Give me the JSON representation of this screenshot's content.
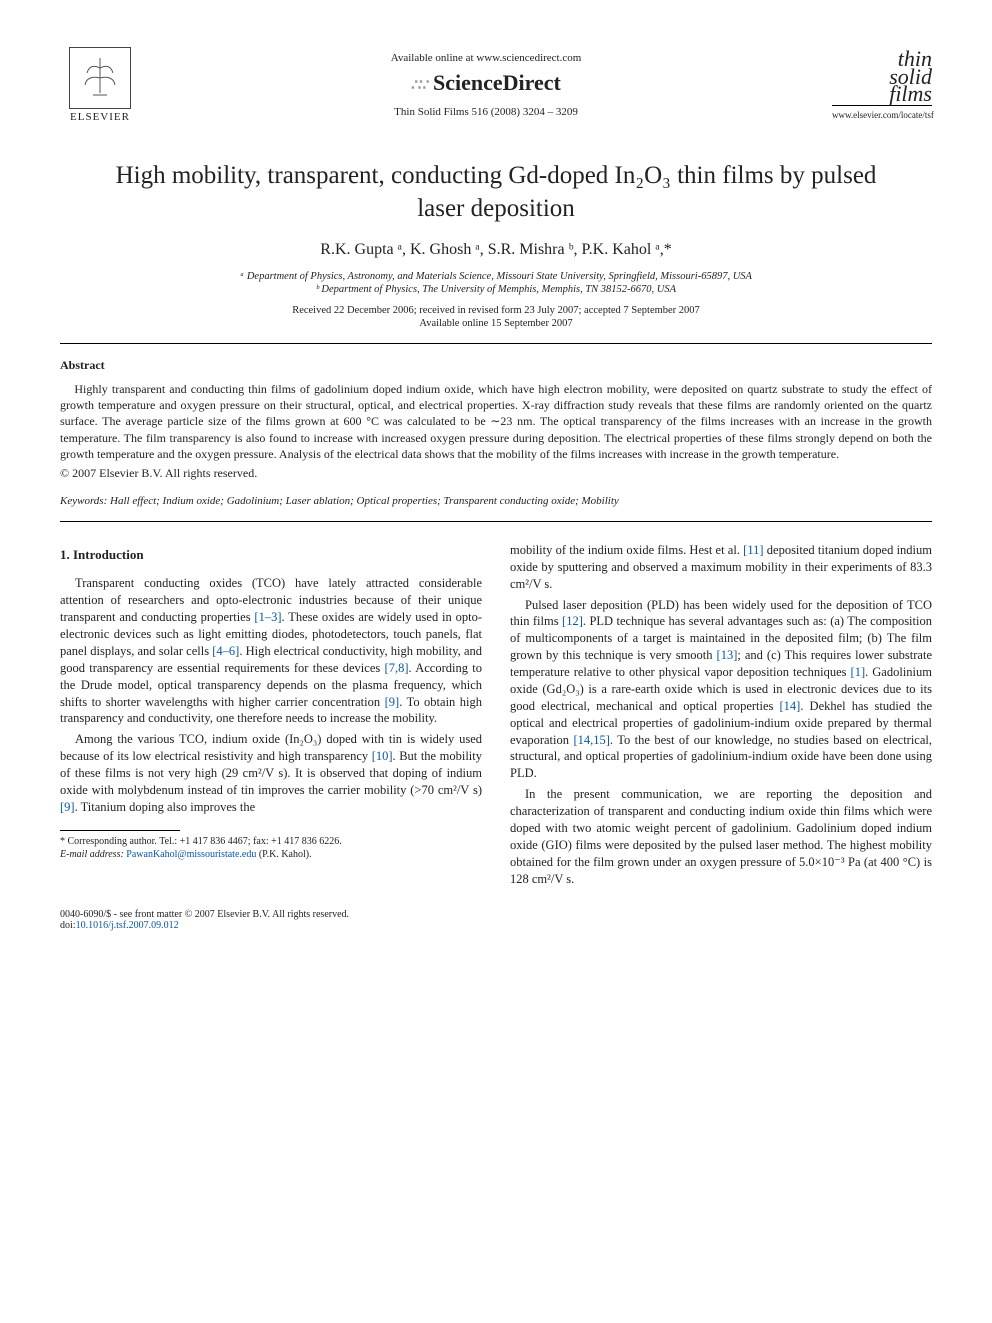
{
  "header": {
    "publisher": "ELSEVIER",
    "avail_text": "Available online at www.sciencedirect.com",
    "sd_brand": "ScienceDirect",
    "journal_ref": "Thin Solid Films 516 (2008) 3204 – 3209",
    "journal_logo_lines": [
      "thin",
      "solid",
      "films"
    ],
    "journal_url": "www.elsevier.com/locate/tsf"
  },
  "title": "High mobility, transparent, conducting Gd-doped In₂O₃ thin films by pulsed laser deposition",
  "authors_html": "R.K. Gupta ᵃ, K. Ghosh ᵃ, S.R. Mishra ᵇ, P.K. Kahol ᵃ,*",
  "affiliations": {
    "a": "ᵃ Department of Physics, Astronomy, and Materials Science, Missouri State University, Springfield, Missouri-65897, USA",
    "b": "ᵇ Department of Physics, The University of Memphis, Memphis, TN 38152-6670, USA"
  },
  "dates": {
    "received": "Received 22 December 2006; received in revised form 23 July 2007; accepted 7 September 2007",
    "online": "Available online 15 September 2007"
  },
  "abstract": {
    "heading": "Abstract",
    "body": "Highly transparent and conducting thin films of gadolinium doped indium oxide, which have high electron mobility, were deposited on quartz substrate to study the effect of growth temperature and oxygen pressure on their structural, optical, and electrical properties. X-ray diffraction study reveals that these films are randomly oriented on the quartz surface. The average particle size of the films grown at 600 °C was calculated to be ∼23 nm. The optical transparency of the films increases with an increase in the growth temperature. The film transparency is also found to increase with increased oxygen pressure during deposition. The electrical properties of these films strongly depend on both the growth temperature and the oxygen pressure. Analysis of the electrical data shows that the mobility of the films increases with increase in the growth temperature.",
    "copyright": "© 2007 Elsevier B.V. All rights reserved."
  },
  "keywords": {
    "label": "Keywords:",
    "list": "Hall effect; Indium oxide; Gadolinium; Laser ablation; Optical properties; Transparent conducting oxide; Mobility"
  },
  "section1_heading": "1. Introduction",
  "col_left": {
    "p1": "Transparent conducting oxides (TCO) have lately attracted considerable attention of researchers and opto-electronic industries because of their unique transparent and conducting properties [1–3]. These oxides are widely used in opto-electronic devices such as light emitting diodes, photodetectors, touch panels, flat panel displays, and solar cells [4–6]. High electrical conductivity, high mobility, and good transparency are essential requirements for these devices [7,8]. According to the Drude model, optical transparency depends on the plasma frequency, which shifts to shorter wavelengths with higher carrier concentration [9]. To obtain high transparency and conductivity, one therefore needs to increase the mobility.",
    "p2": "Among the various TCO, indium oxide (In₂O₃) doped with tin is widely used because of its low electrical resistivity and high transparency [10]. But the mobility of these films is not very high (29 cm²/V s). It is observed that doping of indium oxide with molybdenum instead of tin improves the carrier mobility (>70 cm²/V s) [9]. Titanium doping also improves the"
  },
  "col_right": {
    "p1": "mobility of the indium oxide films. Hest et al. [11] deposited titanium doped indium oxide by sputtering and observed a maximum mobility in their experiments of 83.3 cm²/V s.",
    "p2": "Pulsed laser deposition (PLD) has been widely used for the deposition of TCO thin films [12]. PLD technique has several advantages such as: (a) The composition of multicomponents of a target is maintained in the deposited film; (b) The film grown by this technique is very smooth [13]; and (c) This requires lower substrate temperature relative to other physical vapor deposition techniques [1]. Gadolinium oxide (Gd₂O₃) is a rare-earth oxide which is used in electronic devices due to its good electrical, mechanical and optical properties [14]. Dekhel has studied the optical and electrical properties of gadolinium-indium oxide prepared by thermal evaporation [14,15]. To the best of our knowledge, no studies based on electrical, structural, and optical properties of gadolinium-indium oxide have been done using PLD.",
    "p3": "In the present communication, we are reporting the deposition and characterization of transparent and conducting indium oxide thin films which were doped with two atomic weight percent of gadolinium. Gadolinium doped indium oxide (GIO) films were deposited by the pulsed laser method. The highest mobility obtained for the film grown under an oxygen pressure of 5.0×10⁻³ Pa (at 400 °C) is 128 cm²/V s."
  },
  "footnote": {
    "corr": "* Corresponding author. Tel.: +1 417 836 4467; fax: +1 417 836 6226.",
    "email_label": "E-mail address:",
    "email": "PawanKahol@missouristate.edu",
    "email_tail": "(P.K. Kahol)."
  },
  "bottom": {
    "left": "0040-6090/$ - see front matter © 2007 Elsevier B.V. All rights reserved.",
    "doi_label": "doi:",
    "doi": "10.1016/j.tsf.2007.09.012"
  },
  "refs": [
    "[1–3]",
    "[4–6]",
    "[7,8]",
    "[9]",
    "[10]",
    "[11]",
    "[12]",
    "[13]",
    "[1]",
    "[14]",
    "[14,15]"
  ],
  "colors": {
    "text": "#222222",
    "link": "#0a56a3",
    "background": "#ffffff",
    "rule": "#000000"
  },
  "typography": {
    "body_font": "Times New Roman",
    "title_size_pt": 19,
    "author_size_pt": 12,
    "body_size_pt": 9.5,
    "abstract_size_pt": 9
  }
}
